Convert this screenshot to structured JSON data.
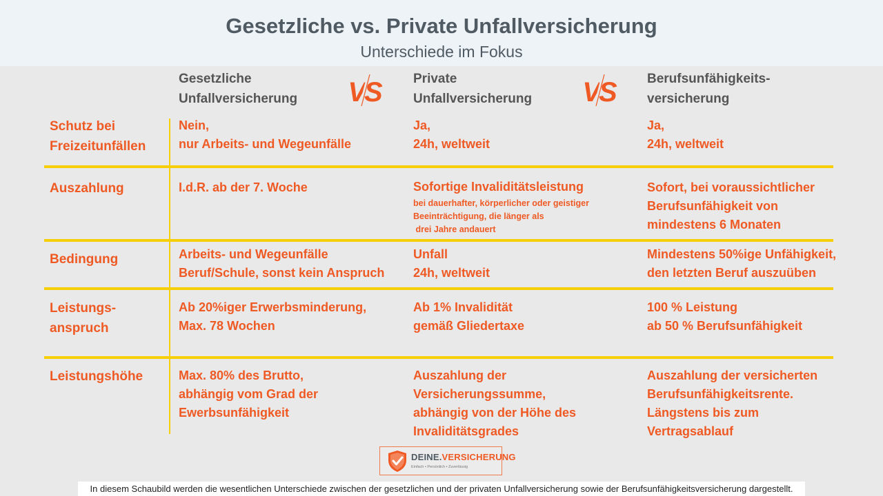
{
  "header": {
    "title": "Gesetzliche vs. Private Unfallversicherung",
    "subtitle": "Unterschiede im Fokus"
  },
  "columns": [
    {
      "line1": "Gesetzliche",
      "line2": "Unfallversicherung"
    },
    {
      "line1": "Private",
      "line2": "Unfallversicherung"
    },
    {
      "line1": "Berufsunfähigkeits-",
      "line2": "versicherung"
    }
  ],
  "vs_label": "VS",
  "rows": [
    {
      "label": [
        "Schutz bei",
        "Freizeitunfällen"
      ],
      "cells": [
        [
          "Nein,",
          "nur Arbeits- und Wegeunfälle"
        ],
        [
          "Ja,",
          "24h, weltweit"
        ],
        [
          "Ja,",
          "24h, weltweit"
        ]
      ]
    },
    {
      "label": [
        "Auszahlung"
      ],
      "cells": [
        [
          "I.d.R. ab der 7. Woche"
        ],
        [
          "Sofortige Invaliditätsleistung"
        ],
        [
          "Sofort, bei voraussichtlicher",
          "Berufsunfähigkeit von",
          "mindestens 6 Monaten"
        ]
      ],
      "note": [
        "bei dauerhafter, körperlicher oder geistiger",
        "Beeinträchtigung, die länger als",
        " drei Jahre andauert"
      ]
    },
    {
      "label": [
        "Bedingung"
      ],
      "cells": [
        [
          "Arbeits- und Wegeunfälle",
          "Beruf/Schule, sonst kein Anspruch"
        ],
        [
          "Unfall",
          "24h, weltweit"
        ],
        [
          "Mindestens 50%ige Unfähigkeit,",
          "den letzten Beruf auszuüben"
        ]
      ]
    },
    {
      "label": [
        "Leistungs-",
        "anspruch"
      ],
      "cells": [
        [
          "Ab 20%iger Erwerbsminderung,",
          "Max. 78 Wochen"
        ],
        [
          "Ab 1% Invalidität",
          "gemäß Gliedertaxe"
        ],
        [
          "100 % Leistung",
          "ab 50 % Berufsunfähigkeit"
        ]
      ]
    },
    {
      "label": [
        "Leistungshöhe"
      ],
      "cells": [
        [
          "Max. 80% des Brutto,",
          "abhängig vom Grad der",
          "Ewerbsunfähigkeit"
        ],
        [
          "Auszahlung der",
          "Versicherungssumme,",
          "abhängig von der Höhe des",
          "Invaliditätsgrades"
        ],
        [
          "Auszahlung der versicherten",
          "Berufsunfähigkeitsrente.",
          "Längstens bis zum",
          "Vertragsablauf"
        ]
      ]
    }
  ],
  "logo": {
    "brand_main": "DEINE.",
    "brand_accent": "VERSICHERUNG",
    "tagline": "Einfach • Persönlich • Zuverlässig"
  },
  "caption": "In diesem Schaubild werden die wesentlichen Unterschiede zwischen der gesetzlichen und der privaten Unfallversicherung sowie der Berufsunfähigkeitsversicherung dargestellt.",
  "colors": {
    "accent": "#ef5a24",
    "divider": "#f6cf09",
    "heading": "#4f5a62"
  }
}
